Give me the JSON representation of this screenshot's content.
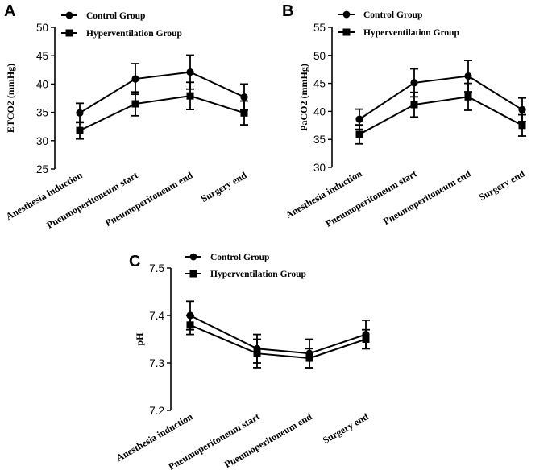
{
  "chart_data": [
    {
      "id": "A",
      "panel_label": "A",
      "type": "line",
      "ylabel": "ETCO2 (mmHg)",
      "ylim": [
        25,
        50
      ],
      "yticks": [
        25,
        30,
        35,
        40,
        45,
        50
      ],
      "categories": [
        "Anesthesia induction",
        "Pneumoperitoneum start",
        "Pneumoperitoneum end",
        "Surgery end"
      ],
      "series": [
        {
          "name": "Control Group",
          "marker": "circle",
          "values": [
            34.9,
            40.9,
            42.1,
            37.7
          ],
          "errors": [
            1.7,
            2.7,
            3.0,
            2.3
          ]
        },
        {
          "name": "Hyperventilation Group",
          "marker": "square",
          "values": [
            31.8,
            36.5,
            37.9,
            34.9
          ],
          "errors": [
            1.5,
            2.1,
            2.4,
            2.1
          ]
        }
      ]
    },
    {
      "id": "B",
      "panel_label": "B",
      "type": "line",
      "ylabel": "PaCO2 (mmHg)",
      "ylim": [
        30,
        55
      ],
      "yticks": [
        30,
        35,
        40,
        45,
        50,
        55
      ],
      "categories": [
        "Anesthesia induction",
        "Pneumoperitoneum start",
        "Pneumoperitoneum end",
        "Surgery end"
      ],
      "series": [
        {
          "name": "Control Group",
          "marker": "circle",
          "values": [
            38.6,
            45.1,
            46.3,
            40.3
          ],
          "errors": [
            1.8,
            2.5,
            2.8,
            2.1
          ]
        },
        {
          "name": "Hyperventilation Group",
          "marker": "square",
          "values": [
            35.9,
            41.2,
            42.6,
            37.5
          ],
          "errors": [
            1.7,
            2.2,
            2.4,
            1.9
          ]
        }
      ]
    },
    {
      "id": "C",
      "panel_label": "C",
      "type": "line",
      "ylabel": "pH",
      "ylim": [
        7.2,
        7.5
      ],
      "yticks": [
        "7.2",
        "7.3",
        "7.4",
        "7.5"
      ],
      "categories": [
        "Anesthesia induction",
        "Pneumoperitoneum start",
        "Pneumoperitoneum end",
        "Surgery end"
      ],
      "series": [
        {
          "name": "Control Group",
          "marker": "circle",
          "values": [
            7.4,
            7.33,
            7.32,
            7.36
          ],
          "errors": [
            0.03,
            0.03,
            0.03,
            0.03
          ]
        },
        {
          "name": "Hyperventilation Group",
          "marker": "square",
          "values": [
            7.38,
            7.32,
            7.31,
            7.35
          ],
          "errors": [
            0.02,
            0.03,
            0.02,
            0.02
          ]
        }
      ]
    }
  ]
}
